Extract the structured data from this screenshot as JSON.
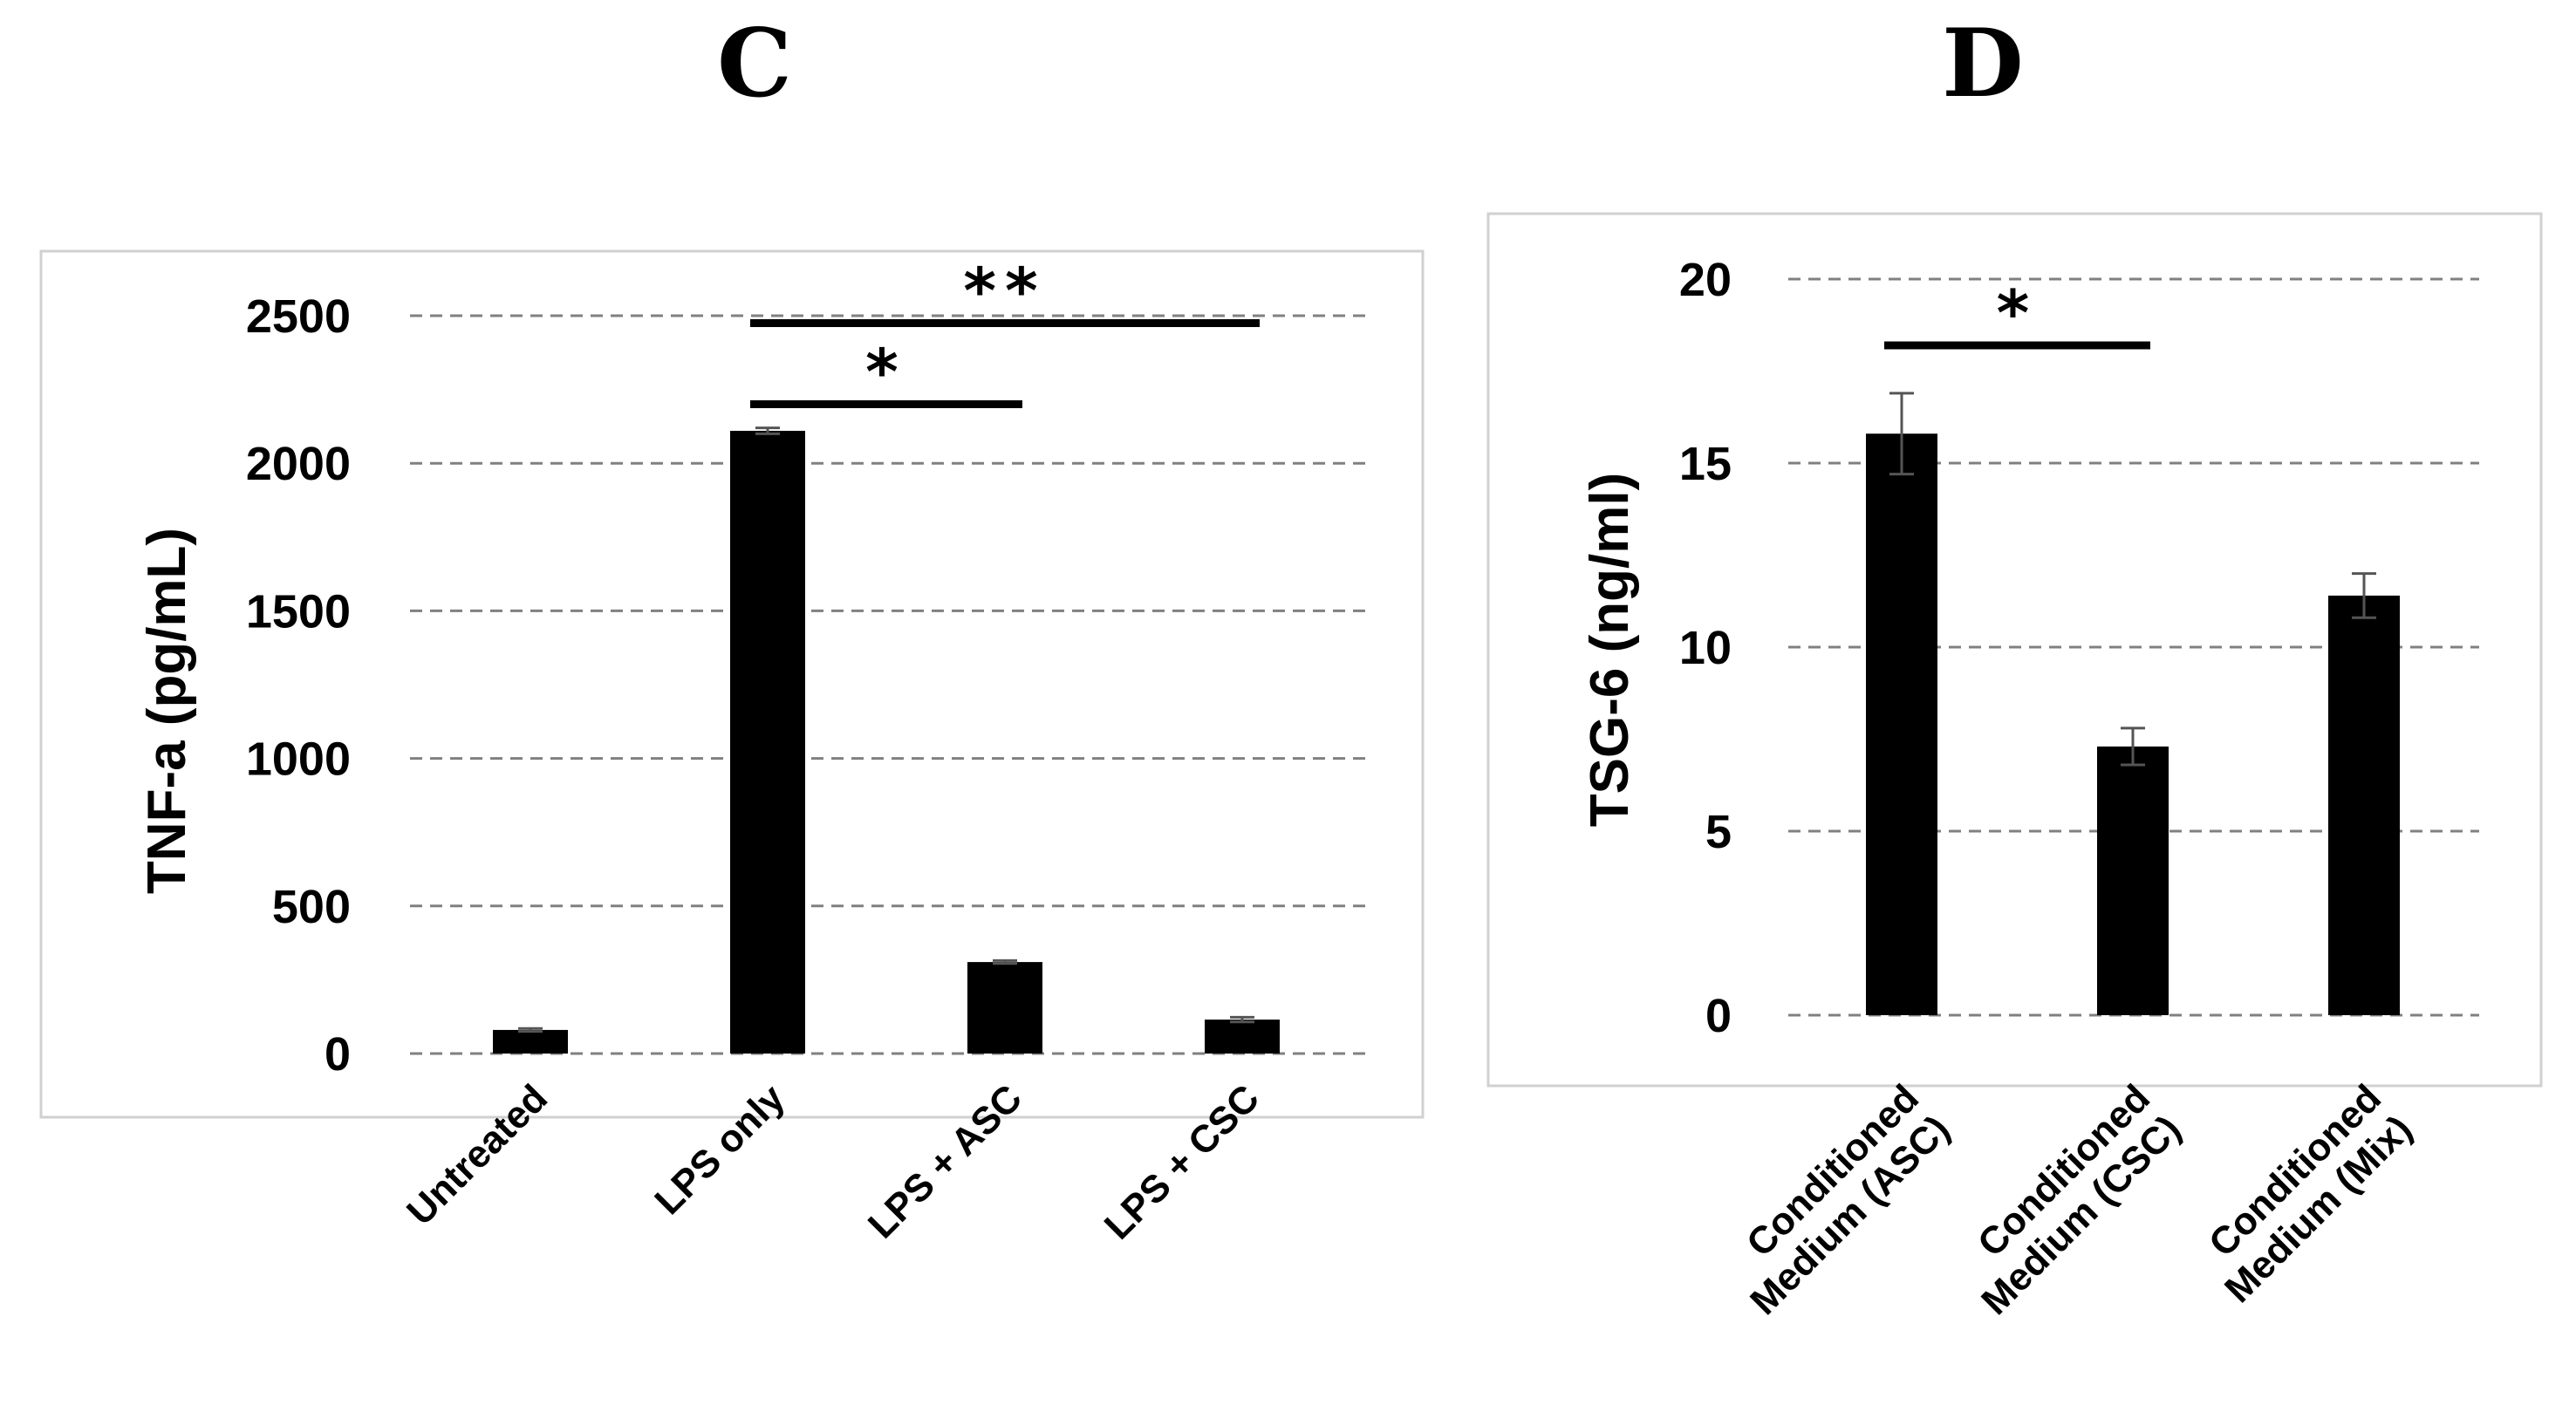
{
  "chart_data": [
    {
      "panel": "C",
      "type": "bar",
      "title": "C",
      "xlabel": "",
      "ylabel": "TNF-a (pg/mL)",
      "ylim": [
        0,
        2500
      ],
      "yticks": [
        0,
        500,
        1000,
        1500,
        2000,
        2500
      ],
      "grid": true,
      "categories": [
        "Untreated",
        "LPS only",
        "LPS + ASC",
        "LPS + CSC"
      ],
      "values": [
        80,
        2110,
        310,
        115
      ],
      "errors": [
        5,
        10,
        5,
        8
      ],
      "significance": [
        {
          "from": 1,
          "to": 2,
          "label": "*",
          "level": 2200
        },
        {
          "from": 1,
          "to": 3,
          "label": "**",
          "level": 2475
        }
      ]
    },
    {
      "panel": "D",
      "type": "bar",
      "title": "D",
      "xlabel": "",
      "ylabel": "TSG-6 (ng/ml)",
      "ylim": [
        0,
        20
      ],
      "yticks": [
        0,
        5,
        10,
        15,
        20
      ],
      "grid": true,
      "categories": [
        [
          "Conditioned",
          "Medium (ASC)"
        ],
        [
          "Conditioned",
          "Medium (CSC)"
        ],
        [
          "Conditioned",
          "Medium (Mix)"
        ]
      ],
      "values": [
        15.8,
        7.3,
        11.4
      ],
      "errors": [
        1.1,
        0.5,
        0.6
      ],
      "significance": [
        {
          "from": 0,
          "to": 1,
          "label": "*",
          "level": 18.2
        }
      ]
    }
  ]
}
